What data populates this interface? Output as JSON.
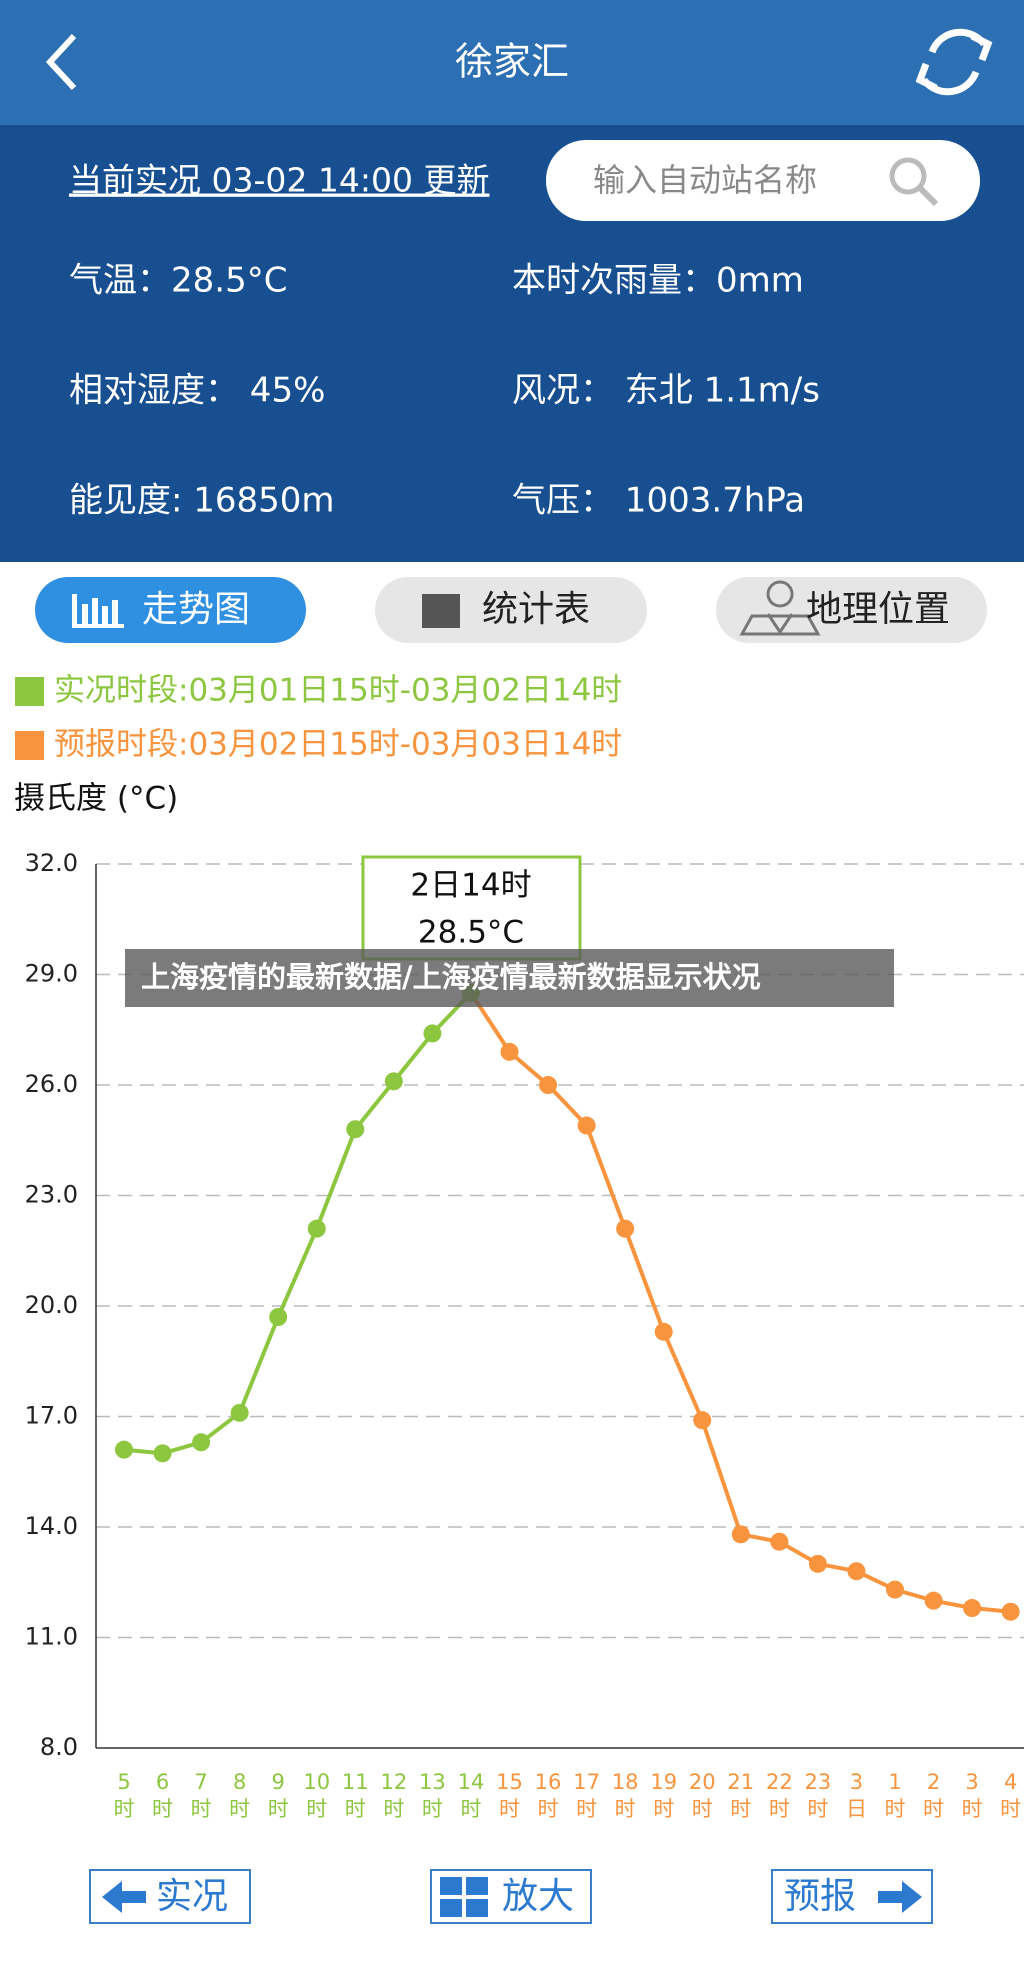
{
  "header": {
    "title": "徐家汇"
  },
  "info": {
    "update": "当前实况 03-02 14:00 更新",
    "search_placeholder": "输入自动站名称",
    "rows": [
      [
        "气温：28.5°C",
        "本时次雨量：0mm"
      ],
      [
        "相对湿度： 45%",
        "风况： 东北 1.1m/s"
      ],
      [
        "能见度: 16850m",
        "气压： 1003.7hPa"
      ]
    ]
  },
  "tabs": [
    "走势图",
    "统计表",
    "地理位置"
  ],
  "legend": [
    "实况时段:03月01日15时-03月02日14时",
    "预报时段:03月02日15时-03月03日14时"
  ],
  "chart_data": {
    "type": "line",
    "y_label": "摄氏度 (°C)",
    "categories": [
      [
        "5",
        "时"
      ],
      [
        "6",
        "时"
      ],
      [
        "7",
        "时"
      ],
      [
        "8",
        "时"
      ],
      [
        "9",
        "时"
      ],
      [
        "10",
        "时"
      ],
      [
        "11",
        "时"
      ],
      [
        "12",
        "时"
      ],
      [
        "13",
        "时"
      ],
      [
        "14",
        "时"
      ],
      [
        "15",
        "时"
      ],
      [
        "16",
        "时"
      ],
      [
        "17",
        "时"
      ],
      [
        "18",
        "时"
      ],
      [
        "19",
        "时"
      ],
      [
        "20",
        "时"
      ],
      [
        "21",
        "时"
      ],
      [
        "22",
        "时"
      ],
      [
        "23",
        "时"
      ],
      [
        "3",
        "日"
      ],
      [
        "1",
        "时"
      ],
      [
        "2",
        "时"
      ],
      [
        "3",
        "时"
      ],
      [
        "4",
        "时"
      ]
    ],
    "series": [
      {
        "name": "实况",
        "color": "#8dc63f",
        "values": [
          16.1,
          16.0,
          16.3,
          17.1,
          19.7,
          22.1,
          24.8,
          26.1,
          27.4,
          28.5,
          null,
          null,
          null,
          null,
          null,
          null,
          null,
          null,
          null,
          null,
          null,
          null,
          null,
          null
        ]
      },
      {
        "name": "预报",
        "color": "#f7943d",
        "values": [
          null,
          null,
          null,
          null,
          null,
          null,
          null,
          null,
          null,
          null,
          26.9,
          26.0,
          24.9,
          22.1,
          19.3,
          16.9,
          13.8,
          13.6,
          13.0,
          12.8,
          12.3,
          12.0,
          11.8,
          11.7
        ]
      }
    ],
    "ylim": [
      8,
      32
    ],
    "yticks": [
      {
        "value": 8,
        "label": "8.0"
      },
      {
        "value": 11,
        "label": "11.0"
      },
      {
        "value": 14,
        "label": "14.0"
      },
      {
        "value": 17,
        "label": "17.0"
      },
      {
        "value": 20,
        "label": "20.0"
      },
      {
        "value": 23,
        "label": "23.0"
      },
      {
        "value": 26,
        "label": "26.0"
      },
      {
        "value": 29,
        "label": "29.0"
      },
      {
        "value": 32,
        "label": "32.0"
      }
    ],
    "grid": true,
    "tooltip": {
      "title": "2日14时",
      "value": "28.5°C"
    }
  },
  "buttons": [
    "实况",
    "放大",
    "预报"
  ],
  "caption": "上海疫情的最新数据/上海疫情最新数据显示状况"
}
